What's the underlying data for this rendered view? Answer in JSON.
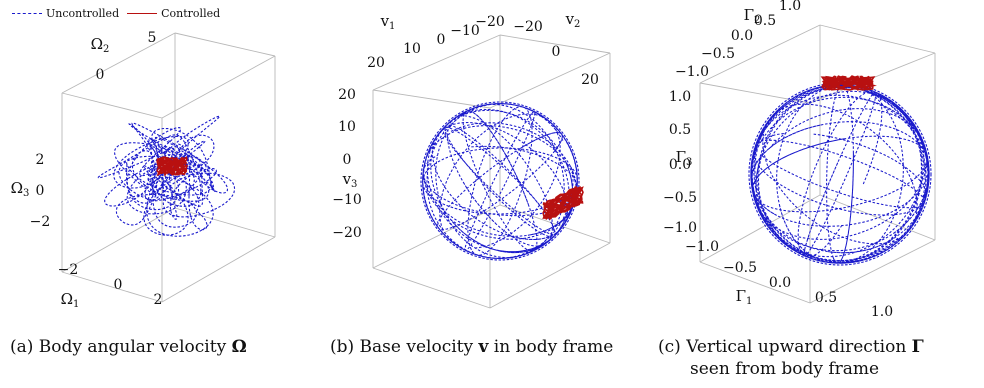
{
  "legend": {
    "items": [
      {
        "label": "Uncontrolled",
        "color": "#1a1acc",
        "style": "dashed"
      },
      {
        "label": "Controlled",
        "color": "#b81010",
        "style": "solid"
      }
    ]
  },
  "captions": {
    "a": {
      "prefix": "(a) Body angular velocity ",
      "symbol": "Ω"
    },
    "b": {
      "prefix": "(b) Base velocity ",
      "symbol": "v",
      "suffix": " in body frame"
    },
    "c": {
      "prefix": "(c)  Vertical  upward  direction ",
      "symbol": "Γ",
      "line2": "seen from body frame"
    }
  },
  "chart_data": [
    {
      "type": "line",
      "subtype": "3d-trajectory",
      "title": "(a) Body angular velocity Ω",
      "axes": {
        "x": {
          "label": "Ω1",
          "ticks": [
            "−2",
            "0",
            "2"
          ]
        },
        "y": {
          "label": "Ω2",
          "ticks": [
            "0",
            "5"
          ]
        },
        "z": {
          "label": "Ω3",
          "ticks": [
            "2",
            "0",
            "−2"
          ]
        }
      },
      "series": [
        {
          "name": "Uncontrolled",
          "description": "tangled wandering trajectory filling the box"
        },
        {
          "name": "Controlled",
          "description": "small compact cluster near the origin"
        }
      ]
    },
    {
      "type": "line",
      "subtype": "3d-trajectory-on-sphere",
      "title": "(b) Base velocity v in body frame",
      "axes": {
        "x": {
          "label": "v1",
          "ticks": [
            "20",
            "10",
            "0",
            "−10",
            "−20"
          ]
        },
        "y": {
          "label": "v2",
          "ticks": [
            "−20",
            "0",
            "20"
          ]
        },
        "z": {
          "label": "v3",
          "ticks": [
            "20",
            "10",
            "0",
            "−10",
            "−20"
          ]
        }
      },
      "series": [
        {
          "name": "Uncontrolled",
          "description": "dashed arcs covering a sphere of radius ~20"
        },
        {
          "name": "Controlled",
          "description": "small patch on the lower-right sphere surface"
        }
      ]
    },
    {
      "type": "line",
      "subtype": "3d-trajectory-on-sphere",
      "title": "(c) Vertical upward direction Γ seen from body frame",
      "axes": {
        "x": {
          "label": "Γ1",
          "ticks": [
            "−1.0",
            "−0.5",
            "0.0",
            "0.5",
            "1.0"
          ]
        },
        "y": {
          "label": "Γ2",
          "ticks": [
            "−1.0",
            "−0.5",
            "0.0",
            "0.5",
            "1.0"
          ]
        },
        "z": {
          "label": "Γ3",
          "ticks": [
            "1.0",
            "0.5",
            "0.0",
            "−0.5",
            "−1.0"
          ]
        }
      },
      "series": [
        {
          "name": "Uncontrolled",
          "description": "dashed arcs covering the unit sphere"
        },
        {
          "name": "Controlled",
          "description": "small cluster near the top of the sphere"
        }
      ]
    }
  ]
}
